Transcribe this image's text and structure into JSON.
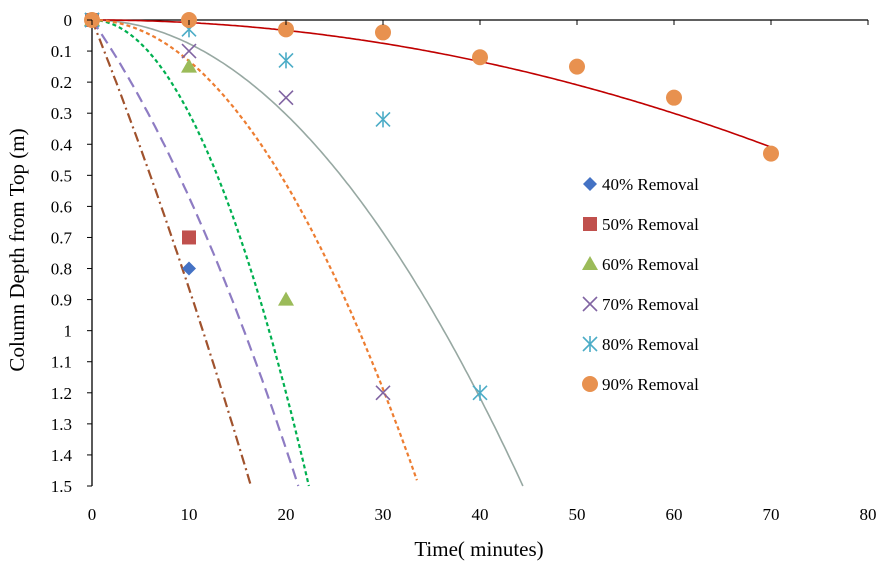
{
  "chart_data": {
    "type": "scatter",
    "title": "",
    "xlabel": "Time( minutes)",
    "ylabel": "Column Depth from Top (m)",
    "xlim": [
      0,
      80
    ],
    "ylim": [
      0,
      1.5
    ],
    "y_inverted": true,
    "x_ticks": [
      0,
      10,
      20,
      30,
      40,
      50,
      60,
      70,
      80
    ],
    "y_ticks": [
      0,
      0.1,
      0.2,
      0.3,
      0.4,
      0.5,
      0.6,
      0.7,
      0.8,
      0.9,
      1,
      1.1,
      1.2,
      1.3,
      1.4,
      1.5
    ],
    "x_tick_labels": [
      "0",
      "10",
      "20",
      "30",
      "40",
      "50",
      "60",
      "70",
      "80"
    ],
    "y_tick_labels": [
      "0",
      "0.1",
      "0.2",
      "0.3",
      "0.4",
      "0.5",
      "0.6",
      "0.7",
      "0.8",
      "0.9",
      "1",
      "1.1",
      "1.2",
      "1.3",
      "1.4",
      "1.5"
    ],
    "grid": false,
    "legend_position": "right",
    "series": [
      {
        "name": "40% Removal",
        "marker": "diamond",
        "color": "#4472C4",
        "points": [
          {
            "x": 0,
            "y": 0
          },
          {
            "x": 10,
            "y": 0.8
          }
        ],
        "curve": {
          "a": 0.0008,
          "b": 0.0784,
          "style": "dashdot",
          "color": "#A0522D",
          "x_max": 20
        }
      },
      {
        "name": "50% Removal",
        "marker": "square",
        "color": "#C0504D",
        "points": [
          {
            "x": 0,
            "y": 0
          },
          {
            "x": 10,
            "y": 0.7
          }
        ]
      },
      {
        "name": "60% Removal",
        "marker": "triangle",
        "color": "#9BBB59",
        "points": [
          {
            "x": 0,
            "y": 0
          },
          {
            "x": 10,
            "y": 0.15
          },
          {
            "x": 20,
            "y": 0.9
          }
        ],
        "curve": {
          "a": 0.003,
          "b": 0,
          "style": "dotted",
          "color": "#00B050",
          "x_max": 25
        }
      },
      {
        "name": "70% Removal",
        "marker": "x",
        "color": "#8064A2",
        "points": [
          {
            "x": 0,
            "y": 0
          },
          {
            "x": 10,
            "y": 0.1
          },
          {
            "x": 20,
            "y": 0.25
          },
          {
            "x": 30,
            "y": 1.2
          }
        ],
        "curve": {
          "a": 0.0012,
          "b": 0.045,
          "style": "dashed",
          "color": "#8E7CC3",
          "x_max": 22
        }
      },
      {
        "name": "80% Removal",
        "marker": "asterisk",
        "color": "#4BACC6",
        "points": [
          {
            "x": 0,
            "y": 0
          },
          {
            "x": 10,
            "y": 0.03
          },
          {
            "x": 20,
            "y": 0.13
          },
          {
            "x": 30,
            "y": 0.32
          },
          {
            "x": 40,
            "y": 1.2
          }
        ],
        "curve": {
          "a": 0.00076,
          "b": 0,
          "style": "solid",
          "color": "#97A8A2",
          "x_max": 45
        }
      },
      {
        "name": "90% Removal",
        "marker": "circle",
        "color": "#E8914F",
        "points": [
          {
            "x": 0,
            "y": 0
          },
          {
            "x": 10,
            "y": 0
          },
          {
            "x": 20,
            "y": 0.03
          },
          {
            "x": 30,
            "y": 0.04
          },
          {
            "x": 40,
            "y": 0.12
          },
          {
            "x": 50,
            "y": 0.15
          },
          {
            "x": 60,
            "y": 0.25
          },
          {
            "x": 70,
            "y": 0.43
          }
        ],
        "curve": {
          "a": 8.35e-05,
          "b": 0,
          "style": "solid",
          "color": "#C00000",
          "x_max": 70
        }
      }
    ],
    "extra_curves": [
      {
        "a": 0.00132,
        "b": 0,
        "style": "dotted",
        "color": "#ED7D31",
        "x_max": 33.5
      }
    ]
  }
}
